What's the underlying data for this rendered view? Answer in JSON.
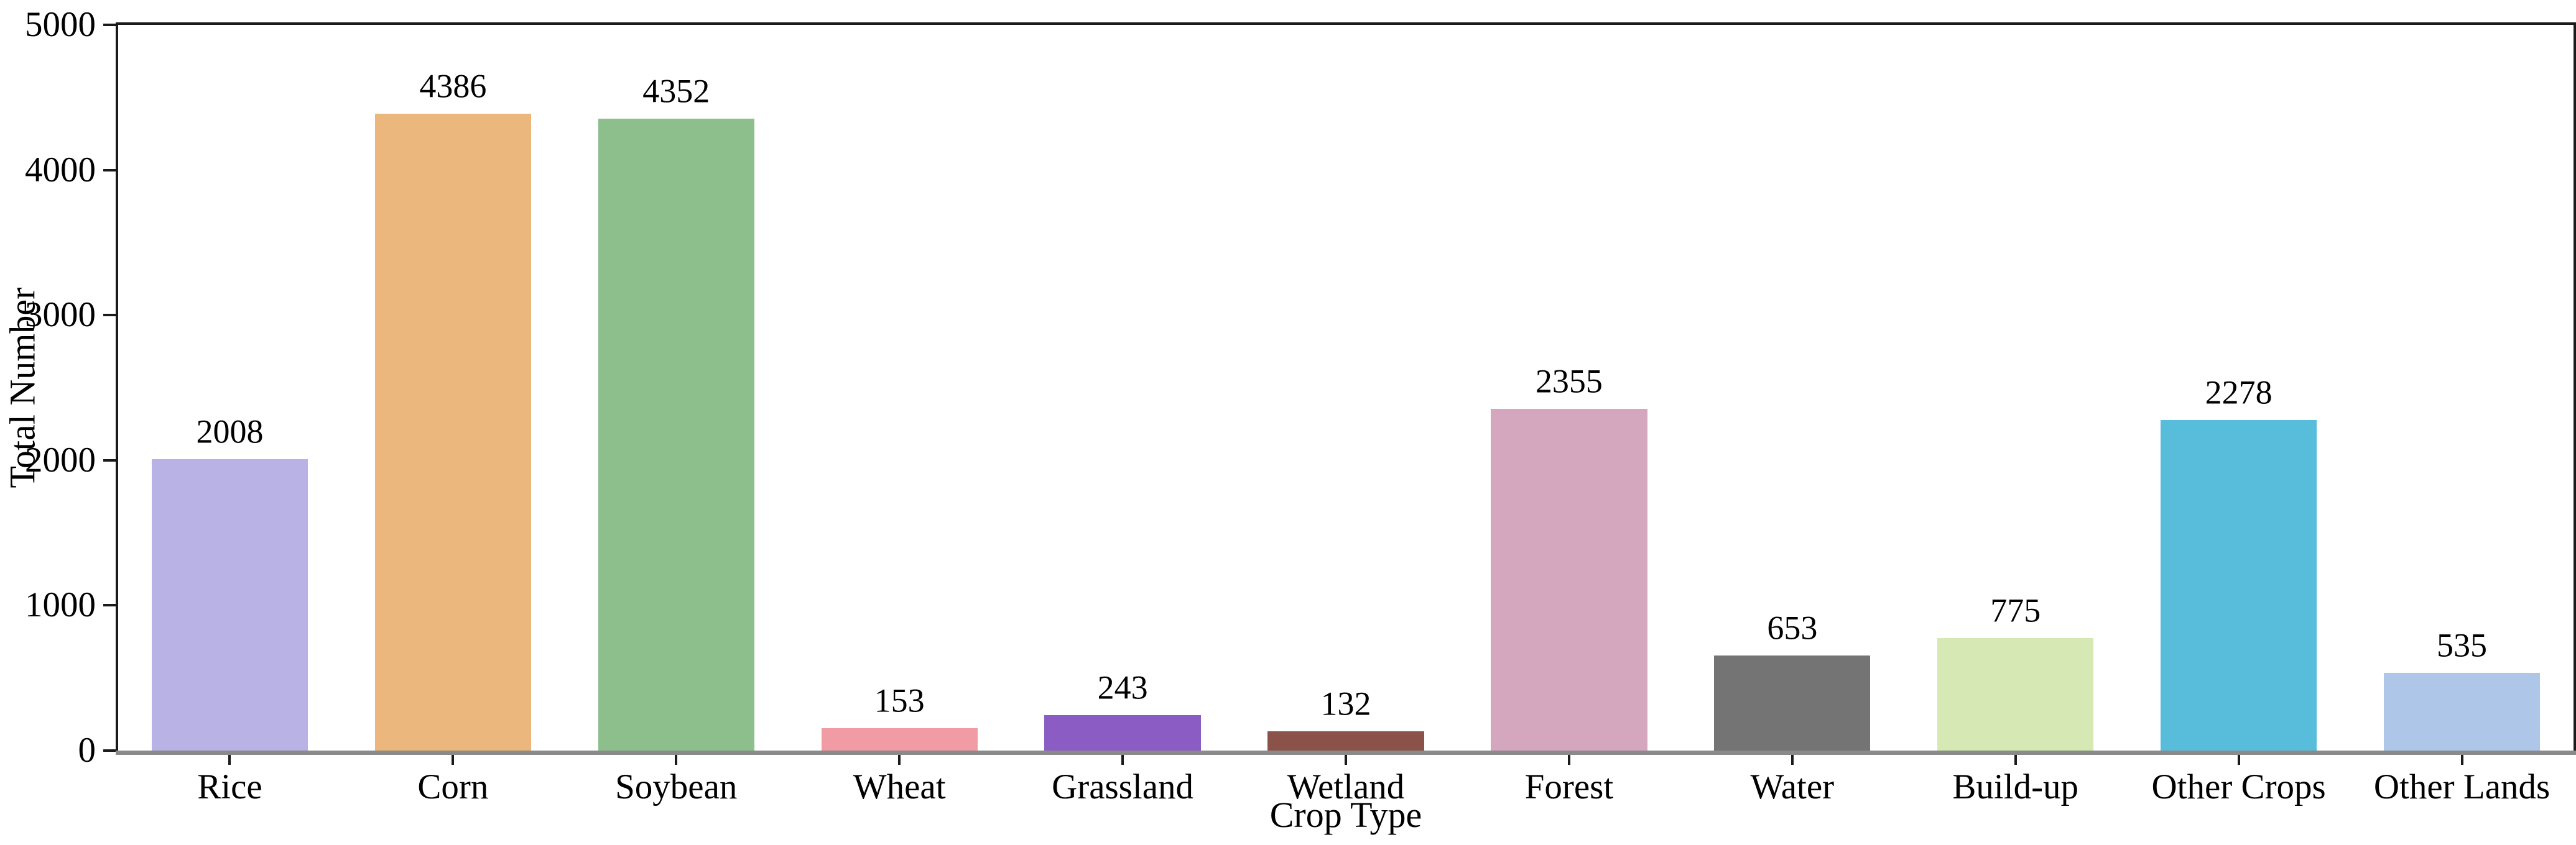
{
  "figure": {
    "background": "#ffffff"
  },
  "chart_data": {
    "type": "bar",
    "title": "",
    "xlabel": "Crop Type",
    "ylabel": "Total Number",
    "ylim": [
      0,
      5000
    ],
    "yticks": [
      0,
      1000,
      2000,
      3000,
      4000,
      5000
    ],
    "grid": false,
    "legend": null,
    "categories": [
      "Rice",
      "Corn",
      "Soybean",
      "Wheat",
      "Grassland",
      "Wetland",
      "Forest",
      "Water",
      "Build-up",
      "Other Crops",
      "Other Lands"
    ],
    "values": [
      2008,
      4386,
      4352,
      153,
      243,
      132,
      2355,
      653,
      775,
      2278,
      535
    ],
    "bar_colors": [
      "#b8b3e4",
      "#ebb77d",
      "#8cbf8c",
      "#f19ba4",
      "#8b5cc3",
      "#8a5248",
      "#d5a7bf",
      "#747474",
      "#d6e8b4",
      "#58bdda",
      "#aec7e8"
    ],
    "value_label_color": "#000000",
    "axis_colors": {
      "spine": "#1a1a1a",
      "bottom_spine": "#8a8a8a"
    }
  }
}
